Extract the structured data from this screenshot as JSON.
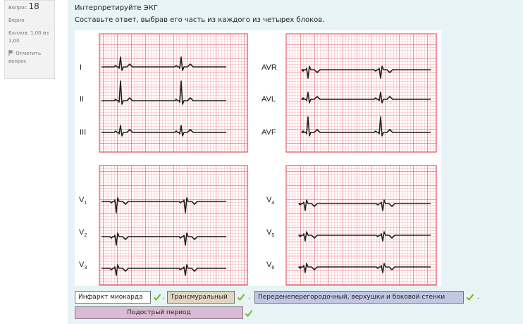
{
  "question_info": {
    "label": "Вопрос",
    "number": "18",
    "status": "Верно",
    "points": "Баллов: 1,00 из 1,00",
    "flag_label": "Отметить вопрос"
  },
  "question": {
    "title": "Интерпретируйте ЭКГ",
    "subtitle": "Составьте ответ, выбрав его часть из каждого из четырех блоков."
  },
  "ecg": {
    "limb_leads_left": [
      "I",
      "II",
      "III"
    ],
    "limb_leads_right": [
      "AVR",
      "AVL",
      "AVF"
    ],
    "chest_leads_left": [
      {
        "base": "V",
        "sub": "1"
      },
      {
        "base": "V",
        "sub": "2"
      },
      {
        "base": "V",
        "sub": "3"
      }
    ],
    "chest_leads_right": [
      {
        "base": "V",
        "sub": "4"
      },
      {
        "base": "V",
        "sub": "5"
      },
      {
        "base": "V",
        "sub": "6"
      }
    ]
  },
  "answers": {
    "part1": "Инфаркт миокарда",
    "part2": "Трансмуральный",
    "part3": "Переденеперегородочный, верхушки и боковой стенки",
    "part4": "Подострый период",
    "separator": "."
  },
  "colors": {
    "grid": "#e23a4a",
    "grid_bg": "#f9c9ce",
    "check": "#7ab51d"
  },
  "icons": {
    "flag": "flag-icon",
    "correct": "checkmark-icon"
  }
}
